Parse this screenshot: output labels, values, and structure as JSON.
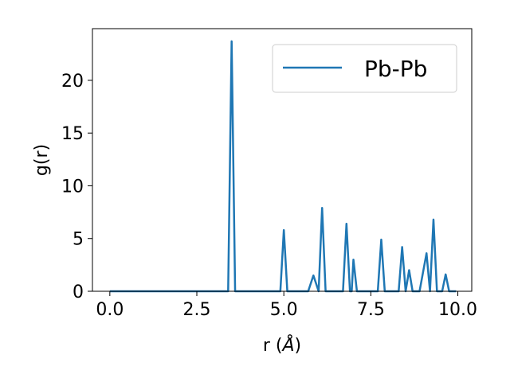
{
  "chart_data": {
    "type": "line",
    "title": "",
    "xlabel": "r (Å)",
    "xlabel_prefix": "r (",
    "xlabel_unit": "Å",
    "xlabel_suffix": ")",
    "ylabel": "g(r)",
    "xlim": [
      -0.5,
      10.4
    ],
    "ylim": [
      0,
      24.9
    ],
    "xticks": [
      0.0,
      2.5,
      5.0,
      7.5,
      10.0
    ],
    "xtick_labels": [
      "0.0",
      "2.5",
      "5.0",
      "7.5",
      "10.0"
    ],
    "yticks": [
      0,
      5,
      10,
      15,
      20
    ],
    "ytick_labels": [
      "0",
      "5",
      "10",
      "15",
      "20"
    ],
    "grid": false,
    "legend_position": "upper-right",
    "series": [
      {
        "name": "Pb-Pb",
        "color": "#1f77b4",
        "x": [
          0.0,
          3.4,
          3.5,
          3.6,
          4.9,
          5.0,
          5.1,
          5.7,
          5.85,
          6.0,
          6.1,
          6.2,
          6.7,
          6.8,
          6.9,
          6.95,
          7.0,
          7.1,
          7.7,
          7.8,
          7.9,
          8.3,
          8.4,
          8.5,
          8.6,
          8.7,
          8.9,
          9.1,
          9.2,
          9.3,
          9.4,
          9.55,
          9.65,
          9.75,
          9.95
        ],
        "y": [
          0.0,
          0.0,
          23.7,
          0.0,
          0.0,
          5.8,
          0.0,
          0.0,
          1.5,
          0.0,
          7.9,
          0.0,
          0.0,
          6.4,
          0.0,
          0.0,
          3.0,
          0.0,
          0.0,
          4.9,
          0.0,
          0.0,
          4.2,
          0.0,
          2.0,
          0.0,
          0.0,
          3.6,
          0.0,
          6.8,
          0.0,
          0.0,
          1.6,
          0.0,
          0.0
        ]
      }
    ]
  }
}
